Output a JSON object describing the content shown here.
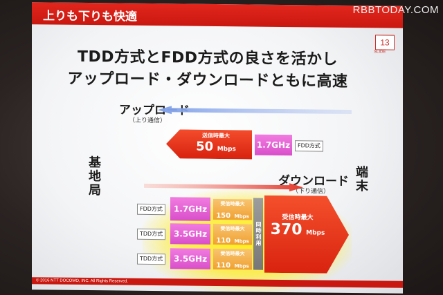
{
  "header": {
    "title": "上りも下りも快適"
  },
  "watermark": "RBBTODAY.COM",
  "page": {
    "number": "13",
    "label": "SLIDE"
  },
  "headline": {
    "line1": "TDD方式とFDD方式の良さを活かし",
    "line2": "アップロード・ダウンロードともに高速"
  },
  "side_labels": {
    "base_station": "基地局",
    "terminal": "端末"
  },
  "upload": {
    "title": "アップロード",
    "subtitle": "（上り通信）",
    "max_label": "送信時最大",
    "speed_value": "50",
    "speed_unit": "Mbps",
    "band": "1.7GHz",
    "method": "FDD方式"
  },
  "download": {
    "title": "ダウンロード",
    "subtitle": "（下り通信）",
    "aggregation_label": "同時利用",
    "total_label": "受信時最大",
    "total_value": "370",
    "total_unit": "Mbps",
    "rows": [
      {
        "method": "FDD方式",
        "band": "1.7GHz",
        "max_label": "受信時最大",
        "value": "150",
        "unit": "Mbps"
      },
      {
        "method": "TDD方式",
        "band": "3.5GHz",
        "max_label": "受信時最大",
        "value": "110",
        "unit": "Mbps"
      },
      {
        "method": "TDD方式",
        "band": "3.5GHz",
        "max_label": "受信時最大",
        "value": "110",
        "unit": "Mbps"
      }
    ]
  },
  "footer": {
    "copyright": "© 2016 NTT DOCOMO, INC. All Rights Reserved."
  },
  "colors": {
    "brand_red": "#d9231a",
    "band_pink": "#e062d4",
    "speed_orange": "#f2ab3c",
    "glow_yellow": "#ffec00"
  }
}
